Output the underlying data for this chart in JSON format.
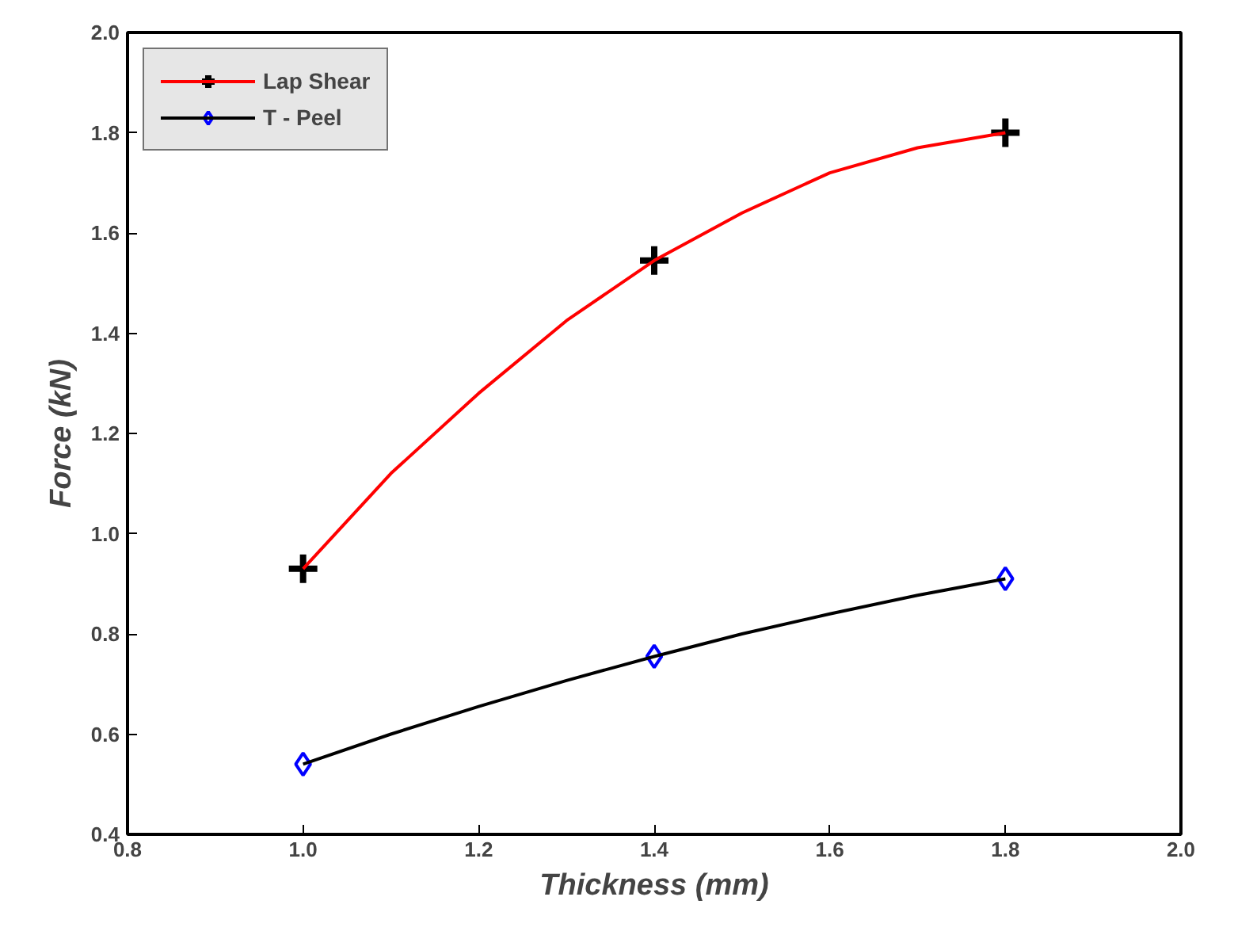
{
  "chart_data": {
    "type": "scatter",
    "xlabel": "Thickness (mm)",
    "ylabel": "Force (kN)",
    "x": [
      1.0,
      1.4,
      1.8
    ],
    "series": [
      {
        "name": "Lap Shear",
        "color": "#000000",
        "marker": "cross",
        "values": [
          0.93,
          1.545,
          1.8
        ]
      },
      {
        "type": "line",
        "color": "#ff0000",
        "x": [
          1.0,
          1.1,
          1.2,
          1.3,
          1.4,
          1.5,
          1.6,
          1.7,
          1.8
        ],
        "values": [
          0.93,
          1.12,
          1.28,
          1.425,
          1.545,
          1.64,
          1.72,
          1.77,
          1.8
        ]
      },
      {
        "name": "T - Peel",
        "color": "#0000ff",
        "marker": "diamond",
        "values": [
          0.54,
          0.755,
          0.91
        ]
      },
      {
        "type": "line",
        "color": "#000000",
        "x": [
          1.0,
          1.1,
          1.2,
          1.3,
          1.4,
          1.5,
          1.6,
          1.7,
          1.8
        ],
        "values": [
          0.54,
          0.6,
          0.655,
          0.707,
          0.755,
          0.8,
          0.84,
          0.877,
          0.91
        ]
      }
    ],
    "xlim": [
      0.8,
      2.0
    ],
    "xticks": [
      {
        "value": 0.8,
        "label": "0.8"
      },
      {
        "value": 1.0,
        "label": "1.0"
      },
      {
        "value": 1.2,
        "label": "1.2"
      },
      {
        "value": 1.4,
        "label": "1.4"
      },
      {
        "value": 1.6,
        "label": "1.6"
      },
      {
        "value": 1.8,
        "label": "1.8"
      },
      {
        "value": 2.0,
        "label": "2.0"
      }
    ],
    "ylim": [
      0.4,
      2.0
    ],
    "yticks": [
      {
        "value": 0.4,
        "label": "0.4"
      },
      {
        "value": 0.6,
        "label": "0.6"
      },
      {
        "value": 0.8,
        "label": "0.8"
      },
      {
        "value": 1.0,
        "label": "1.0"
      },
      {
        "value": 1.2,
        "label": "1.2"
      },
      {
        "value": 1.4,
        "label": "1.4"
      },
      {
        "value": 1.6,
        "label": "1.6"
      },
      {
        "value": 1.8,
        "label": "1.8"
      },
      {
        "value": 2.0,
        "label": "2.0"
      }
    ],
    "grid": false,
    "legend": "top left"
  }
}
